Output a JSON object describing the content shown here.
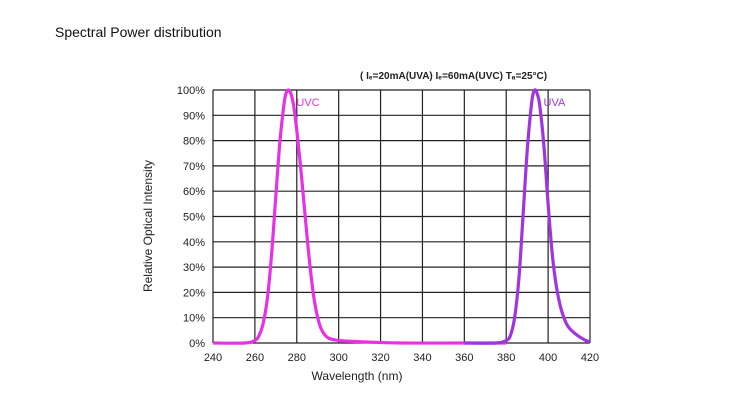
{
  "page": {
    "title": "Spectral Power distribution"
  },
  "chart_data": {
    "type": "line",
    "title": "",
    "annotation": "( Iₑ=20mA(UVA)  Iₑ=60mA(UVC) Tₐ=25°C)",
    "xlabel": "Wavelength (nm)",
    "ylabel": "Relative Optical Intensity",
    "xlim": [
      240,
      420
    ],
    "ylim": [
      0,
      100
    ],
    "x_ticks": [
      240,
      260,
      280,
      300,
      320,
      340,
      360,
      380,
      400,
      420
    ],
    "y_ticks": [
      0,
      10,
      20,
      30,
      40,
      50,
      60,
      70,
      80,
      90,
      100
    ],
    "y_tick_labels": [
      "0%",
      "10%",
      "20%",
      "30%",
      "40%",
      "50%",
      "60%",
      "70%",
      "80%",
      "90%",
      "100%"
    ],
    "grid": true,
    "series": [
      {
        "name": "UVC",
        "color": "#e631e6",
        "x": [
          240,
          255,
          260,
          262,
          264,
          266,
          268,
          270,
          272,
          274,
          275,
          276,
          277,
          278,
          279,
          280,
          282,
          284,
          286,
          288,
          290,
          292,
          295,
          300,
          310,
          330,
          360,
          380
        ],
        "y": [
          0,
          0,
          1,
          3,
          8,
          18,
          35,
          58,
          80,
          95,
          99,
          100,
          99,
          96,
          91,
          84,
          68,
          50,
          33,
          19,
          10,
          5,
          2,
          1,
          0.5,
          0,
          0,
          0
        ]
      },
      {
        "name": "UVA",
        "color": "#a035e0",
        "x": [
          360,
          375,
          380,
          382,
          384,
          386,
          388,
          390,
          392,
          393,
          394,
          395,
          396,
          398,
          400,
          402,
          404,
          406,
          408,
          410,
          414,
          418,
          420
        ],
        "y": [
          0,
          0,
          1,
          3,
          10,
          25,
          50,
          76,
          94,
          99,
          100,
          98,
          94,
          78,
          55,
          35,
          22,
          14,
          9,
          6,
          3,
          1,
          0.5
        ]
      }
    ]
  }
}
